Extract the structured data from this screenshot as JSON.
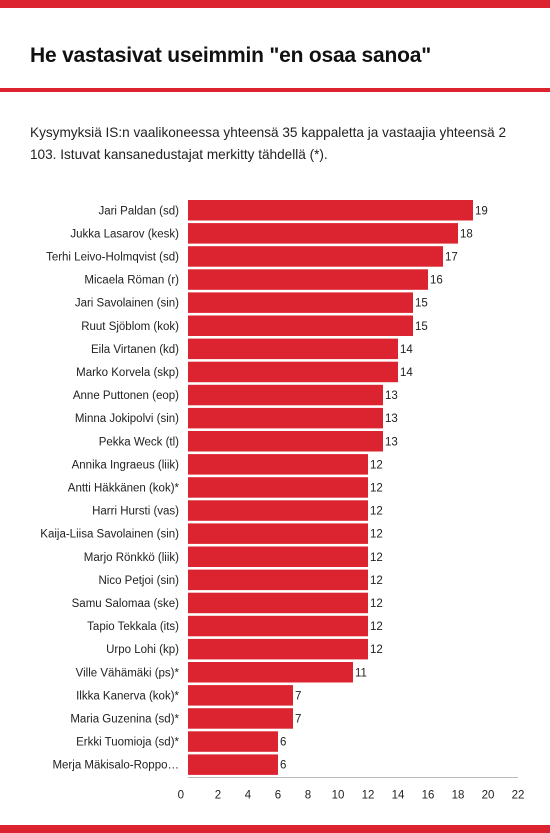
{
  "header": {
    "title": "He vastasivat useimmin \"en osaa sanoa\"",
    "subtitle": "Kysymyksiä IS:n vaalikoneessa yhteensä 35 kappaletta ja vastaajia yhteensä 2 103. Istuvat kansanedustajat merkitty tähdellä (*)."
  },
  "colors": {
    "accent": "#dc2430",
    "bar": "#dc2430"
  },
  "chart_data": {
    "type": "bar",
    "orientation": "horizontal",
    "title": "He vastasivat useimmin \"en osaa sanoa\"",
    "categories": [
      "Jari Paldan (sd)",
      "Jukka Lasarov (kesk)",
      "Terhi Leivo-Holmqvist (sd)",
      "Micaela Röman (r)",
      "Jari Savolainen (sin)",
      "Ruut Sjöblom (kok)",
      "Eila Virtanen (kd)",
      "Marko Korvela (skp)",
      "Anne Puttonen (eop)",
      "Minna Jokipolvi (sin)",
      "Pekka Weck (tl)",
      "Annika Ingraeus (liik)",
      "Antti Häkkänen (kok)*",
      "Harri Hursti (vas)",
      "Kaija-Liisa Savolainen (sin)",
      "Marjo Rönkkö (liik)",
      "Nico Petjoi (sin)",
      "Samu Salomaa (ske)",
      "Tapio Tekkala (its)",
      "Urpo Lohi (kp)",
      "Ville Vähämäki (ps)*",
      "Ilkka Kanerva (kok)*",
      "Maria Guzenina (sd)*",
      "Erkki Tuomioja (sd)*",
      "Merja Mäkisalo-Roppo…"
    ],
    "values": [
      19,
      18,
      17,
      16,
      15,
      15,
      14,
      14,
      13,
      13,
      13,
      12,
      12,
      12,
      12,
      12,
      12,
      12,
      12,
      12,
      11,
      7,
      7,
      6,
      6
    ],
    "xlim": [
      0,
      22
    ],
    "xticks": [
      0,
      2,
      4,
      6,
      8,
      10,
      12,
      14,
      16,
      18,
      20,
      22
    ],
    "grid": false,
    "legend": "none"
  }
}
